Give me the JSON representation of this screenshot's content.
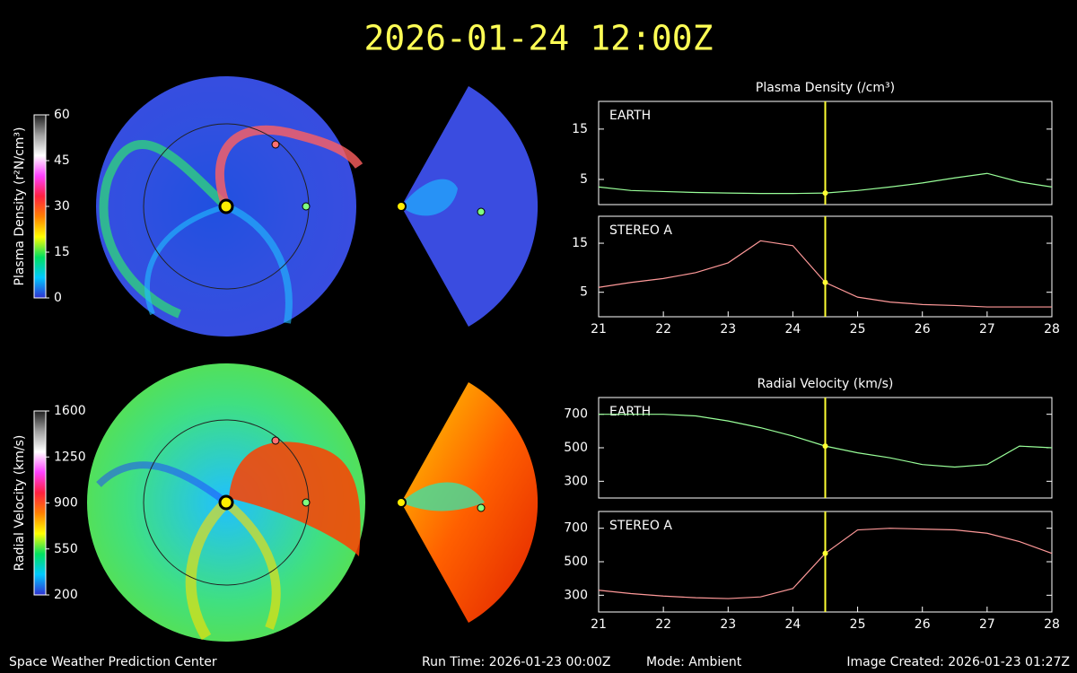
{
  "title": "2026-01-24 12:00Z",
  "colorbars": [
    {
      "label": "Plasma Density (r²N/cm³)",
      "lim": [
        0,
        60
      ],
      "ticks": [
        0,
        15,
        30,
        45,
        60
      ],
      "colors": [
        "#3030d0",
        "#00c8ff",
        "#00e060",
        "#ffff00",
        "#ff8000",
        "#ff2040",
        "#ff40ff",
        "#ffffff",
        "#a0a0a0",
        "#202020"
      ]
    },
    {
      "label": "Radial Velocity (km/s)",
      "lim": [
        200,
        1600
      ],
      "ticks": [
        200,
        550,
        900,
        1250,
        1600
      ],
      "colors": [
        "#3030d0",
        "#00c8ff",
        "#00e060",
        "#ffff00",
        "#ff8000",
        "#ff2040",
        "#ff40ff",
        "#ffffff",
        "#a0a0a0",
        "#202020"
      ]
    }
  ],
  "chart_data": [
    {
      "type": "line",
      "title": "Plasma Density (/cm³)",
      "x": [
        21,
        21.5,
        22,
        22.5,
        23,
        23.5,
        24,
        24.5,
        25,
        25.5,
        26,
        26.5,
        27,
        27.5,
        28
      ],
      "series": [
        {
          "name": "EARTH",
          "color": "#99ff99",
          "values": [
            3.5,
            2.8,
            2.6,
            2.4,
            2.3,
            2.2,
            2.2,
            2.3,
            2.8,
            3.5,
            4.3,
            5.3,
            6.2,
            4.5,
            3.5
          ]
        }
      ],
      "xlim": [
        21,
        28
      ],
      "ylim": [
        0,
        20.5
      ],
      "yticks": [
        5,
        15
      ],
      "marker_x": 24.5,
      "marker_color": "#ffff33"
    },
    {
      "type": "line",
      "x": [
        21,
        21.5,
        22,
        22.5,
        23,
        23.5,
        24,
        24.5,
        25,
        25.5,
        26,
        26.5,
        27,
        27.5,
        28
      ],
      "series": [
        {
          "name": "STEREO A",
          "color": "#ff9999",
          "values": [
            6,
            7,
            7.8,
            9,
            11,
            15.5,
            14.5,
            7,
            4,
            3,
            2.5,
            2.3,
            2,
            2,
            2
          ]
        }
      ],
      "xlim": [
        21,
        28
      ],
      "ylim": [
        0,
        20.5
      ],
      "yticks": [
        5,
        15
      ],
      "xticks": [
        21,
        22,
        23,
        24,
        25,
        26,
        27,
        28
      ],
      "marker_x": 24.5,
      "marker_color": "#ffff33"
    },
    {
      "type": "line",
      "title": "Radial Velocity (km/s)",
      "x": [
        21,
        21.5,
        22,
        22.5,
        23,
        23.5,
        24,
        24.5,
        25,
        25.5,
        26,
        26.5,
        27,
        27.5,
        28
      ],
      "series": [
        {
          "name": "EARTH",
          "color": "#99ff99",
          "values": [
            700,
            700,
            700,
            690,
            660,
            620,
            570,
            510,
            470,
            440,
            400,
            385,
            400,
            510,
            500
          ]
        }
      ],
      "xlim": [
        21,
        28
      ],
      "ylim": [
        200,
        800
      ],
      "yticks": [
        300,
        500,
        700
      ],
      "marker_x": 24.5,
      "marker_color": "#ffff33"
    },
    {
      "type": "line",
      "x": [
        21,
        21.5,
        22,
        22.5,
        23,
        23.5,
        24,
        24.5,
        25,
        25.5,
        26,
        26.5,
        27,
        27.5,
        28
      ],
      "series": [
        {
          "name": "STEREO A",
          "color": "#ff9999",
          "values": [
            330,
            310,
            295,
            285,
            280,
            290,
            340,
            550,
            690,
            700,
            695,
            690,
            670,
            620,
            550
          ]
        }
      ],
      "xlim": [
        21,
        28
      ],
      "ylim": [
        200,
        800
      ],
      "yticks": [
        300,
        500,
        700
      ],
      "xticks": [
        21,
        22,
        23,
        24,
        25,
        26,
        27,
        28
      ],
      "marker_x": 24.5,
      "marker_color": "#ffff33"
    }
  ],
  "footer": {
    "left": "Space Weather Prediction Center",
    "run_time": "Run Time: 2026-01-23 00:00Z",
    "mode": "Mode: Ambient",
    "right": "Image Created: 2026-01-23 01:27Z"
  }
}
